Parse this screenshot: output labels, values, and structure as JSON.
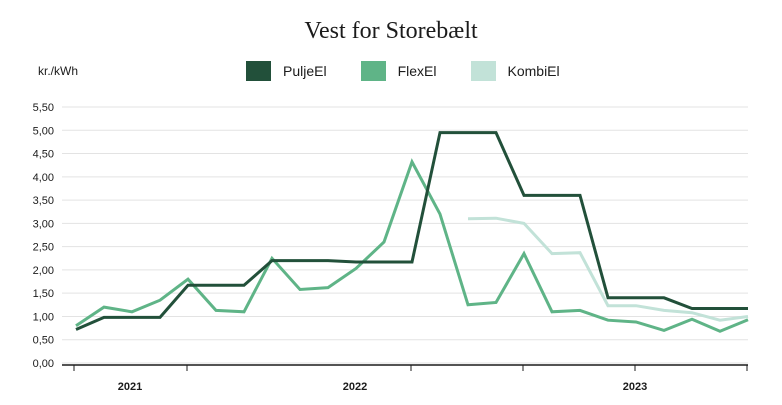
{
  "chart_data": {
    "type": "line",
    "title": "Vest for Storebælt",
    "ylabel": "kr./kWh",
    "ylim": [
      0,
      5.5
    ],
    "yticks": [
      "0,00",
      "0,50",
      "1,00",
      "1,50",
      "2,00",
      "2,50",
      "3,00",
      "3,50",
      "4,00",
      "4,50",
      "5,00",
      "5,50"
    ],
    "x": [
      "2020-12",
      "2021-01",
      "2021-02",
      "2021-03",
      "2021-04",
      "2021-05",
      "2021-06",
      "2021-07",
      "2021-08",
      "2021-09",
      "2021-10",
      "2021-11",
      "2021-12",
      "2022-01",
      "2022-02",
      "2022-03",
      "2022-04",
      "2022-05",
      "2022-06",
      "2022-07",
      "2022-08",
      "2022-09",
      "2022-10",
      "2022-11",
      "2022-12",
      "2023-01",
      "2023-02"
    ],
    "year_labels": [
      "2021",
      "2022",
      "2023"
    ],
    "grid": true,
    "legend_position": "top",
    "series": [
      {
        "name": "PuljeEl",
        "color": "#22503a",
        "values": [
          0.72,
          0.98,
          0.98,
          0.98,
          1.67,
          1.67,
          1.67,
          2.2,
          2.2,
          2.2,
          2.17,
          2.17,
          2.17,
          4.95,
          4.95,
          4.95,
          3.6,
          3.6,
          3.6,
          1.4,
          1.4,
          1.4,
          1.17,
          1.17,
          1.17,
          null,
          null
        ]
      },
      {
        "name": "FlexEl",
        "color": "#5fb487",
        "values": [
          0.8,
          1.2,
          1.1,
          1.35,
          1.8,
          1.13,
          1.1,
          2.25,
          1.58,
          1.62,
          2.03,
          2.6,
          4.32,
          3.2,
          1.25,
          1.3,
          2.35,
          1.1,
          1.13,
          0.92,
          0.88,
          0.7,
          0.94,
          0.68,
          0.93,
          null,
          null
        ]
      },
      {
        "name": "KombiEl",
        "color": "#c2e2d8",
        "values": [
          null,
          null,
          null,
          null,
          null,
          null,
          null,
          null,
          null,
          null,
          null,
          null,
          null,
          null,
          3.1,
          3.11,
          3.0,
          2.35,
          2.37,
          1.23,
          1.23,
          1.13,
          1.08,
          0.92,
          1.0,
          null,
          null
        ]
      }
    ]
  }
}
